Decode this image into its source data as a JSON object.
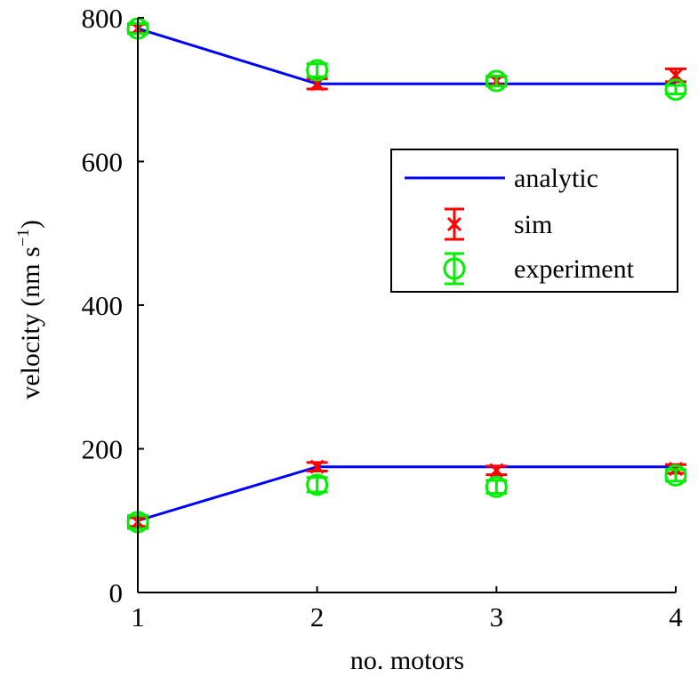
{
  "chart_data": {
    "type": "line",
    "xlabel": "no. motors",
    "ylabel_main": "velocity (nm s",
    "ylabel_sup": "−1",
    "ylabel_close": ")",
    "xlim": [
      1,
      4
    ],
    "ylim": [
      0,
      800
    ],
    "x_ticks": [
      1,
      2,
      3,
      4
    ],
    "y_ticks": [
      0,
      200,
      400,
      600,
      800
    ],
    "grid": false,
    "legend_position": "top-right",
    "series": [
      {
        "name": "analytic",
        "kind": "line",
        "color": "#0000ff",
        "groups": [
          {
            "x": [
              1,
              2,
              3,
              4
            ],
            "y": [
              785,
              708,
              708,
              708
            ]
          },
          {
            "x": [
              1,
              2,
              3,
              4
            ],
            "y": [
              100,
              175,
              175,
              175
            ]
          }
        ]
      },
      {
        "name": "sim",
        "kind": "errorbar-x",
        "color": "#ff0000",
        "points": [
          {
            "x": 1,
            "y": 785,
            "err": 6
          },
          {
            "x": 2,
            "y": 708,
            "err": 7
          },
          {
            "x": 3,
            "y": 712,
            "err": 6
          },
          {
            "x": 4,
            "y": 720,
            "err": 9
          },
          {
            "x": 1,
            "y": 98,
            "err": 6
          },
          {
            "x": 2,
            "y": 175,
            "err": 6
          },
          {
            "x": 3,
            "y": 170,
            "err": 6
          },
          {
            "x": 4,
            "y": 172,
            "err": 6
          }
        ]
      },
      {
        "name": "experiment",
        "kind": "errorbar-o",
        "color": "#00ee00",
        "points": [
          {
            "x": 1,
            "y": 785,
            "err": 7
          },
          {
            "x": 2,
            "y": 727,
            "err": 9
          },
          {
            "x": 3,
            "y": 712,
            "err": 7
          },
          {
            "x": 4,
            "y": 700,
            "err": 6
          },
          {
            "x": 1,
            "y": 98,
            "err": 9
          },
          {
            "x": 2,
            "y": 150,
            "err": 10
          },
          {
            "x": 3,
            "y": 147,
            "err": 9
          },
          {
            "x": 4,
            "y": 163,
            "err": 8
          }
        ]
      }
    ]
  }
}
